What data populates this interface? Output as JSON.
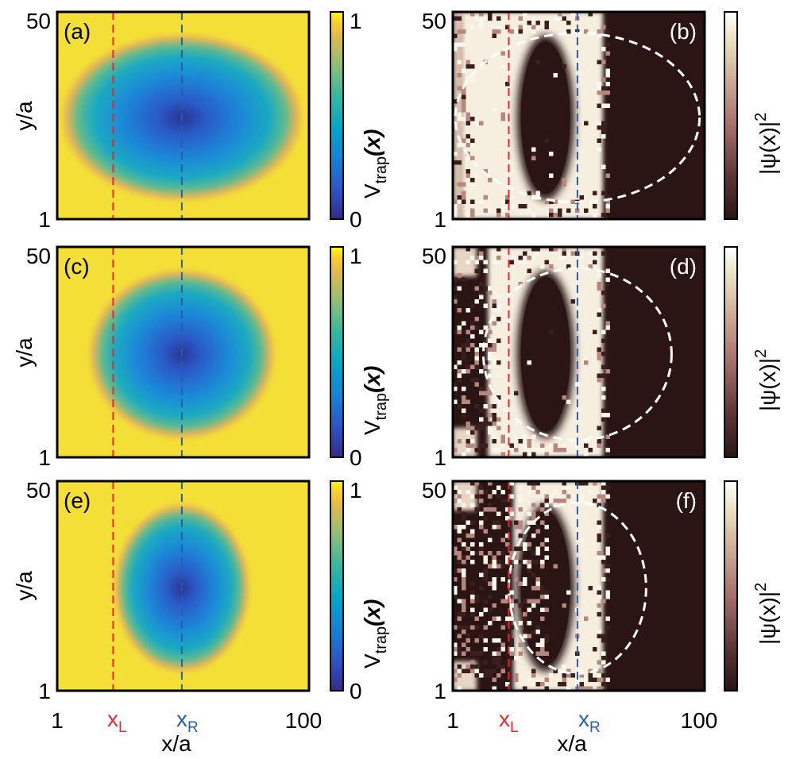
{
  "figure": {
    "x_label": "x/a",
    "y_label": "y/a",
    "x_ticks": [
      "1",
      "100"
    ],
    "y_ticks": [
      "1",
      "50"
    ],
    "marker_labels": {
      "left": "x",
      "left_sub": "L",
      "right": "x",
      "right_sub": "R"
    },
    "colors": {
      "marker_left": "#e8272e",
      "marker_right": "#2a5ca8",
      "dashed_contour": "#ffffff"
    }
  },
  "colorbars": {
    "potential": {
      "label_main": "V",
      "label_sub": "trap",
      "label_arg": "(x)",
      "tick_min": "0",
      "tick_max": "1",
      "colormap": "parula"
    },
    "density": {
      "label": "|ψ(x)|",
      "label_sup": "2",
      "colormap": "pink-dark"
    }
  },
  "chart_data": [
    {
      "panel": "(a)",
      "type": "heatmap",
      "quantity": "potential",
      "x_range": [
        1,
        100
      ],
      "y_range": [
        1,
        50
      ],
      "x_L": 23,
      "x_R": 50,
      "trap_center": [
        50,
        25
      ],
      "trap_semi_axes": [
        48,
        20
      ],
      "value_range": [
        0,
        1
      ]
    },
    {
      "panel": "(b)",
      "type": "heatmap",
      "quantity": "density",
      "x_range": [
        1,
        100
      ],
      "y_range": [
        1,
        50
      ],
      "x_L": 23,
      "x_R": 50,
      "trap_center": [
        50,
        25
      ],
      "trap_semi_axes": [
        48,
        20
      ]
    },
    {
      "panel": "(c)",
      "type": "heatmap",
      "quantity": "potential",
      "x_range": [
        1,
        100
      ],
      "y_range": [
        1,
        50
      ],
      "x_L": 23,
      "x_R": 50,
      "trap_center": [
        50,
        25
      ],
      "trap_semi_axes": [
        37,
        20
      ],
      "value_range": [
        0,
        1
      ]
    },
    {
      "panel": "(d)",
      "type": "heatmap",
      "quantity": "density",
      "x_range": [
        1,
        100
      ],
      "y_range": [
        1,
        50
      ],
      "x_L": 23,
      "x_R": 50,
      "trap_center": [
        50,
        25
      ],
      "trap_semi_axes": [
        37,
        20
      ]
    },
    {
      "panel": "(e)",
      "type": "heatmap",
      "quantity": "potential",
      "x_range": [
        1,
        100
      ],
      "y_range": [
        1,
        50
      ],
      "x_L": 23,
      "x_R": 50,
      "trap_center": [
        50,
        25
      ],
      "trap_semi_axes": [
        27,
        20
      ],
      "value_range": [
        0,
        1
      ]
    },
    {
      "panel": "(f)",
      "type": "heatmap",
      "quantity": "density",
      "x_range": [
        1,
        100
      ],
      "y_range": [
        1,
        50
      ],
      "x_L": 23,
      "x_R": 50,
      "trap_center": [
        50,
        25
      ],
      "trap_semi_axes": [
        27,
        20
      ]
    }
  ]
}
